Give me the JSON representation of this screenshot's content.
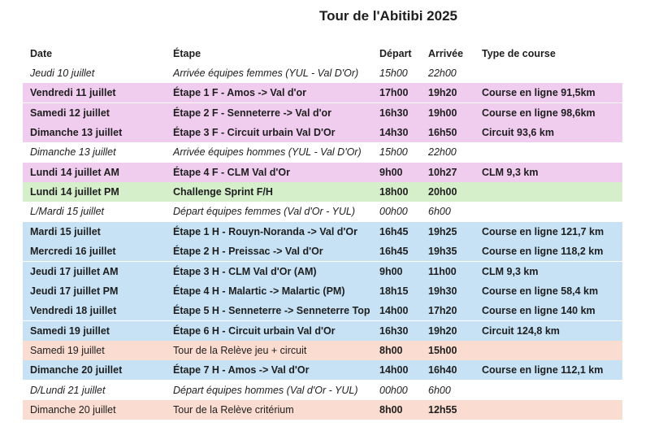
{
  "title": "Tour de l'Abitibi 2025",
  "header": {
    "date": "Date",
    "etape": "Étape",
    "depart": "Départ",
    "arrivee": "Arrivée",
    "type": "Type de course"
  },
  "rows": [
    {
      "date": "Jeudi 10 juillet",
      "etape": "Arrivée équipes femmes (YUL - Val D'Or)",
      "depart": "15h00",
      "arrivee": "22h00",
      "font": "italic",
      "color": "#ffffff"
    },
    {
      "date": "Vendredi 11 juillet",
      "etape": "Étape 1 F - Amos -> Val d'or",
      "depart": "17h00",
      "arrivee": "19h20",
      "type": "Course en ligne 91,5km",
      "font": "bold",
      "color": "#f0cdef"
    },
    {
      "date": "Samedi 12 juillet",
      "etape": "Étape 2 F - Senneterre -> Val d'or",
      "depart": "16h30",
      "arrivee": "19h00",
      "type": "Course en ligne 98,6km",
      "font": "bold",
      "color": "#f0cdef"
    },
    {
      "date": "Dimanche 13 juillet",
      "etape": "Étape 3 F - Circuit urbain Val D'Or",
      "depart": "14h30",
      "arrivee": "16h50",
      "type": "Circuit 93,6 km",
      "font": "bold",
      "color": "#f0cdef"
    },
    {
      "date": "Dimanche 13 juillet",
      "etape": "Arrivée équipes hommes (YUL - Val D'Or)",
      "depart": "15h00",
      "arrivee": "22h00",
      "font": "italic",
      "color": "#ffffff"
    },
    {
      "date": "Lundi 14 juillet AM",
      "etape": "Étape 4 F - CLM Val d'Or",
      "depart": "9h00",
      "arrivee": "10h27",
      "type": "CLM 9,3 km",
      "font": "bold",
      "color": "#f0cdef"
    },
    {
      "date": "Lundi 14 juillet PM",
      "etape": "Challenge Sprint F/H",
      "depart": "18h00",
      "arrivee": "20h00",
      "font": "bold",
      "color": "#d5efcb"
    },
    {
      "date": "L/Mardi 15 juillet",
      "etape": "Départ équipes femmes (Val d'Or - YUL)",
      "depart": "00h00",
      "arrivee": "6h00",
      "font": "italic",
      "color": "#ffffff"
    },
    {
      "date": "Mardi 15 juillet",
      "etape": "Étape 1 H - Rouyn-Noranda -> Val d'Or",
      "depart": "16h45",
      "arrivee": "19h25",
      "type": "Course en ligne 121,7 km",
      "font": "bold",
      "color": "#c6e2f4"
    },
    {
      "date": "Mercredi 16 juillet",
      "etape": "Étape 2 H - Preissac -> Val d'Or",
      "depart": "16h45",
      "arrivee": "19h35",
      "type": "Course en ligne 118,2 km",
      "font": "bold",
      "color": "#c6e2f4"
    },
    {
      "date": "Jeudi 17 juillet AM",
      "etape": "Étape 3 H - CLM Val d'Or (AM)",
      "depart": "9h00",
      "arrivee": "11h00",
      "type": "CLM 9,3 km",
      "font": "bold",
      "color": "#c6e2f4"
    },
    {
      "date": "Jeudi 17 juillet PM",
      "etape": "Étape 4 H - Malartic -> Malartic (PM)",
      "depart": "18h15",
      "arrivee": "19h30",
      "type": "Course en ligne 58,4 km",
      "font": "bold",
      "color": "#c6e2f4"
    },
    {
      "date": "Vendredi 18 juillet",
      "etape": "Étape 5 H - Senneterre -> Senneterre Top",
      "depart": "14h00",
      "arrivee": "17h20",
      "type": "Course en ligne 140 km",
      "font": "bold",
      "color": "#c6e2f4"
    },
    {
      "date": "Samedi 19 juillet",
      "etape": "Étape 6 H - Circuit urbain Val d'Or",
      "depart": "16h30",
      "arrivee": "19h20",
      "type": "Circuit 124,8 km",
      "font": "bold",
      "color": "#c6e2f4"
    },
    {
      "date": "Samedi 19 juillet",
      "etape": "Tour de la Relève jeu + circuit",
      "depart": "8h00",
      "arrivee": "15h00",
      "font": "normal",
      "bold": [
        "depart",
        "arrivee"
      ],
      "color": "#fbdcd0"
    },
    {
      "date": "Dimanche 20 juillet",
      "etape": "Étape 7 H - Amos -> Val d'Or",
      "depart": "14h00",
      "arrivee": "16h40",
      "type": "Course en ligne 112,1 km",
      "font": "bold",
      "color": "#c6e2f4"
    },
    {
      "date": "D/Lundi 21 juillet",
      "etape": "Départ équipes hommes (Val d'Or - YUL)",
      "depart": "00h00",
      "arrivee": "6h00",
      "font": "italic",
      "color": "#ffffff"
    },
    {
      "date": "Dimanche 20 juillet",
      "etape": "Tour de la Relève critérium",
      "depart": "8h00",
      "arrivee": "12h55",
      "font": "normal",
      "bold": [
        "depart",
        "arrivee"
      ],
      "color": "#fbdcd0"
    }
  ]
}
